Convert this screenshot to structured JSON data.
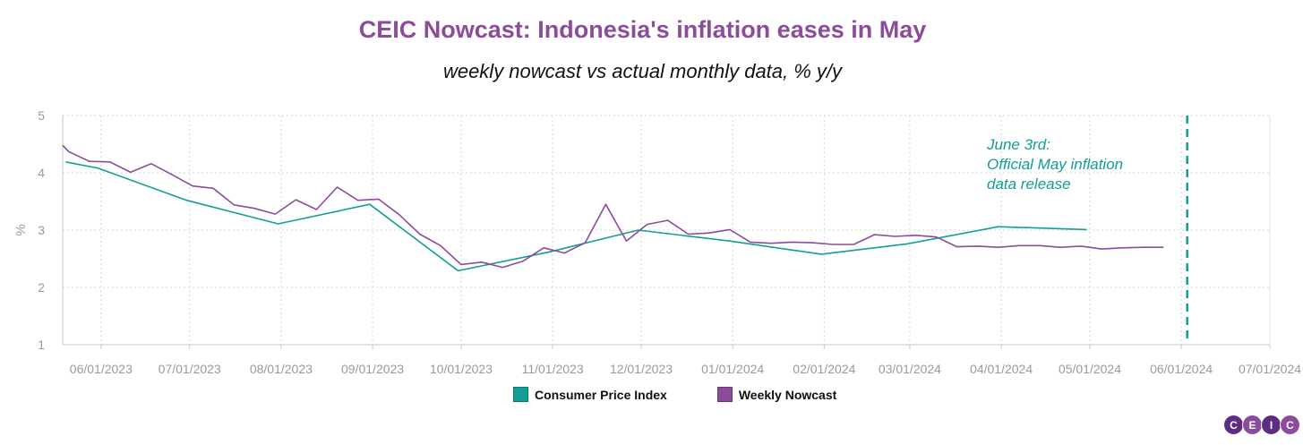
{
  "chart_data": {
    "type": "line",
    "title": "CEIC Nowcast: Indonesia's inflation eases in May",
    "subtitle": "weekly nowcast vs actual monthly data, % y/y",
    "ylabel": "%",
    "ylim": [
      1,
      5
    ],
    "yticks": [
      "1",
      "2",
      "3",
      "4",
      "5"
    ],
    "xlim": [
      "2023-05-19",
      "2024-07-01"
    ],
    "xticks": [
      {
        "date": "2023-06-01",
        "label": "06/01/2023"
      },
      {
        "date": "2023-07-01",
        "label": "07/01/2023"
      },
      {
        "date": "2023-08-01",
        "label": "08/01/2023"
      },
      {
        "date": "2023-09-01",
        "label": "09/01/2023"
      },
      {
        "date": "2023-10-01",
        "label": "10/01/2023"
      },
      {
        "date": "2023-11-01",
        "label": "11/01/2023"
      },
      {
        "date": "2023-12-01",
        "label": "12/01/2023"
      },
      {
        "date": "2024-01-01",
        "label": "01/01/2024"
      },
      {
        "date": "2024-02-01",
        "label": "02/01/2024"
      },
      {
        "date": "2024-03-01",
        "label": "03/01/2024"
      },
      {
        "date": "2024-04-01",
        "label": "04/01/2024"
      },
      {
        "date": "2024-05-01",
        "label": "05/01/2024"
      },
      {
        "date": "2024-06-01",
        "label": "06/01/2024"
      },
      {
        "date": "2024-07-01",
        "label": "07/01/2024"
      }
    ],
    "grid": true,
    "legend_position": "bottom",
    "series": [
      {
        "name": "Consumer Price Index",
        "color": "#119e96",
        "points": [
          [
            "2023-05-20",
            4.19
          ],
          [
            "2023-05-31",
            4.08
          ],
          [
            "2023-06-30",
            3.52
          ],
          [
            "2023-07-31",
            3.11
          ],
          [
            "2023-08-31",
            3.45
          ],
          [
            "2023-09-30",
            2.29
          ],
          [
            "2023-10-31",
            2.62
          ],
          [
            "2023-11-30",
            3.0
          ],
          [
            "2023-12-31",
            2.81
          ],
          [
            "2024-01-31",
            2.58
          ],
          [
            "2024-02-29",
            2.76
          ],
          [
            "2024-03-31",
            3.06
          ],
          [
            "2024-04-30",
            3.01
          ]
        ]
      },
      {
        "name": "Weekly Nowcast",
        "color": "#8b4c9b",
        "points": [
          [
            "2023-05-19",
            4.48
          ],
          [
            "2023-05-21",
            4.37
          ],
          [
            "2023-05-28",
            4.2
          ],
          [
            "2023-06-04",
            4.19
          ],
          [
            "2023-06-11",
            4.01
          ],
          [
            "2023-06-18",
            4.16
          ],
          [
            "2023-06-25",
            3.97
          ],
          [
            "2023-07-02",
            3.77
          ],
          [
            "2023-07-09",
            3.73
          ],
          [
            "2023-07-16",
            3.44
          ],
          [
            "2023-07-23",
            3.38
          ],
          [
            "2023-07-30",
            3.28
          ],
          [
            "2023-08-06",
            3.53
          ],
          [
            "2023-08-13",
            3.36
          ],
          [
            "2023-08-20",
            3.75
          ],
          [
            "2023-08-27",
            3.52
          ],
          [
            "2023-09-03",
            3.54
          ],
          [
            "2023-09-10",
            3.27
          ],
          [
            "2023-09-17",
            2.93
          ],
          [
            "2023-09-24",
            2.73
          ],
          [
            "2023-10-01",
            2.4
          ],
          [
            "2023-10-08",
            2.44
          ],
          [
            "2023-10-15",
            2.35
          ],
          [
            "2023-10-22",
            2.46
          ],
          [
            "2023-10-29",
            2.69
          ],
          [
            "2023-11-05",
            2.6
          ],
          [
            "2023-11-12",
            2.78
          ],
          [
            "2023-11-19",
            3.45
          ],
          [
            "2023-11-26",
            2.81
          ],
          [
            "2023-12-03",
            3.1
          ],
          [
            "2023-12-10",
            3.17
          ],
          [
            "2023-12-17",
            2.93
          ],
          [
            "2023-12-24",
            2.95
          ],
          [
            "2023-12-31",
            3.01
          ],
          [
            "2024-01-07",
            2.79
          ],
          [
            "2024-01-14",
            2.77
          ],
          [
            "2024-01-21",
            2.79
          ],
          [
            "2024-01-28",
            2.78
          ],
          [
            "2024-02-04",
            2.75
          ],
          [
            "2024-02-11",
            2.75
          ],
          [
            "2024-02-18",
            2.92
          ],
          [
            "2024-02-25",
            2.89
          ],
          [
            "2024-03-03",
            2.91
          ],
          [
            "2024-03-10",
            2.88
          ],
          [
            "2024-03-17",
            2.71
          ],
          [
            "2024-03-24",
            2.72
          ],
          [
            "2024-03-31",
            2.7
          ],
          [
            "2024-04-07",
            2.73
          ],
          [
            "2024-04-14",
            2.73
          ],
          [
            "2024-04-21",
            2.7
          ],
          [
            "2024-04-28",
            2.72
          ],
          [
            "2024-05-05",
            2.67
          ],
          [
            "2024-05-12",
            2.69
          ],
          [
            "2024-05-19",
            2.7
          ],
          [
            "2024-05-26",
            2.7
          ]
        ]
      }
    ],
    "annotation": {
      "date": "2024-06-03",
      "lines": [
        "June 3rd:",
        "Official May inflation",
        "data release"
      ],
      "color": "#119e96"
    }
  },
  "legend": {
    "items": [
      {
        "label": "Consumer Price Index",
        "color": "#119e96"
      },
      {
        "label": "Weekly Nowcast",
        "color": "#8b4c9b"
      }
    ]
  },
  "logo": {
    "letters": [
      "C",
      "E",
      "I",
      "C"
    ],
    "colors": [
      "#5b2d83",
      "#8b4c9b",
      "#5b2d83",
      "#8b4c9b"
    ]
  }
}
